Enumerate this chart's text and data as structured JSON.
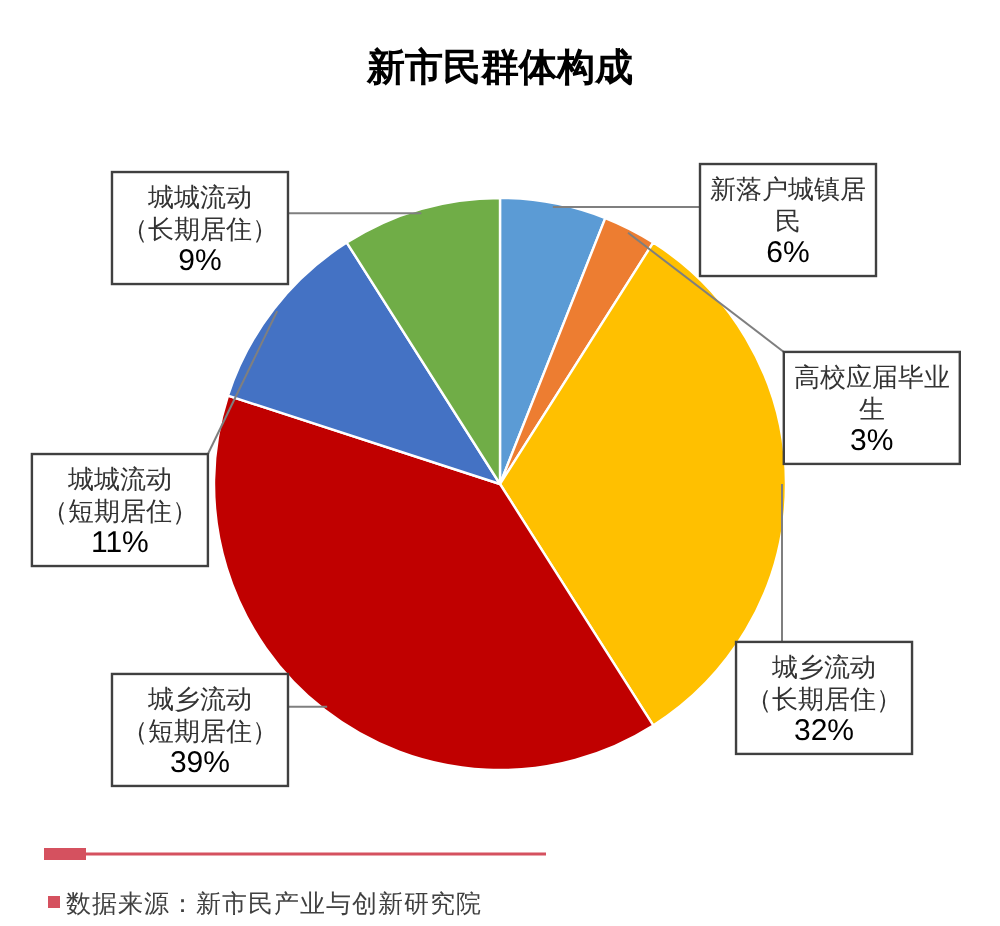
{
  "chart_data": {
    "type": "pie",
    "title": "新市民群体构成",
    "categories": [
      "新落户城镇居民",
      "高校应届毕业生",
      "城乡流动（长期居住）",
      "城乡流动（短期居住）",
      "城城流动（短期居住）",
      "城城流动（长期居住）"
    ],
    "values": [
      6,
      3,
      32,
      39,
      11,
      9
    ],
    "value_labels": [
      "6%",
      "3%",
      "32%",
      "39%",
      "11%",
      "9%"
    ],
    "colors": [
      "#5b9bd5",
      "#ed7d31",
      "#ffc000",
      "#c00000",
      "#4472c4",
      "#70ad47"
    ],
    "annotations": [
      "数据来源：新市民产业与创新研究院"
    ]
  }
}
